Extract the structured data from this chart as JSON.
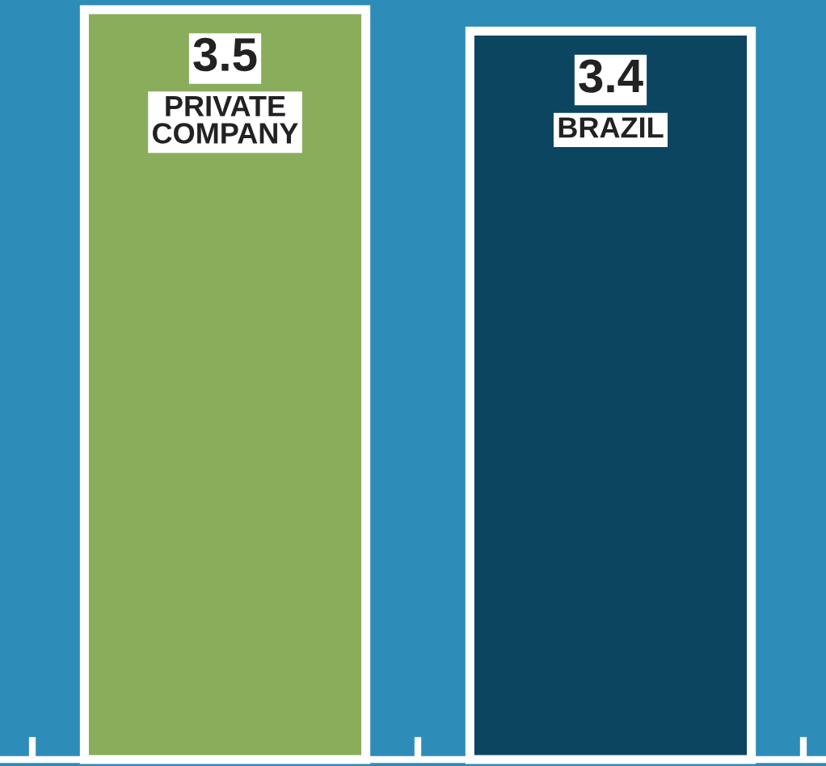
{
  "chart_data": {
    "type": "bar",
    "categories": [
      "PRIVATE COMPANY",
      "BRAZIL"
    ],
    "values": [
      3.5,
      3.4
    ],
    "colors": [
      "#8aad5c",
      "#0b4560"
    ],
    "data_labels": true,
    "grid": false,
    "legend": false
  }
}
